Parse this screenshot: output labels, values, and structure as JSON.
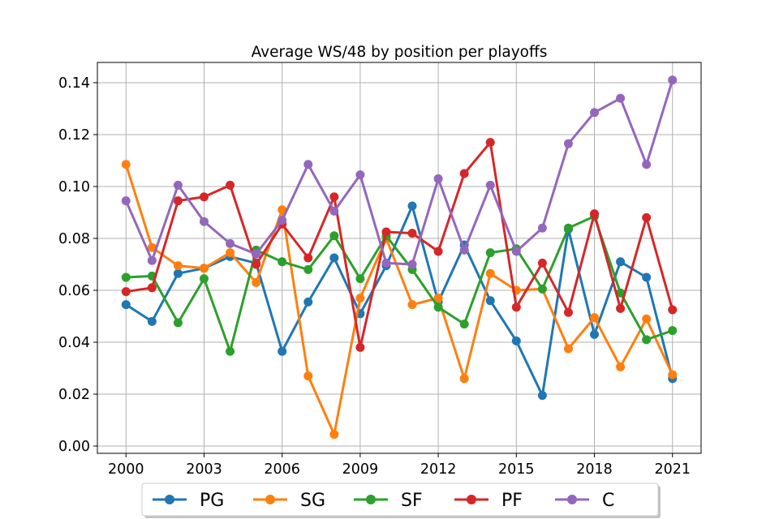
{
  "chart_data": {
    "type": "line",
    "title": "Average WS/48 by position per playoffs",
    "xlabel": "",
    "ylabel": "",
    "x": [
      2000,
      2001,
      2002,
      2003,
      2004,
      2005,
      2006,
      2007,
      2008,
      2009,
      2010,
      2011,
      2012,
      2013,
      2014,
      2015,
      2016,
      2017,
      2018,
      2019,
      2020,
      2021
    ],
    "xlim": [
      1998.9,
      2022.1
    ],
    "ylim": [
      -0.0028,
      0.1478
    ],
    "xticks": [
      2000,
      2003,
      2006,
      2009,
      2012,
      2015,
      2018,
      2021
    ],
    "yticks": [
      0.0,
      0.02,
      0.04,
      0.06,
      0.08,
      0.1,
      0.12,
      0.14
    ],
    "ytick_labels": [
      "0.00",
      "0.02",
      "0.04",
      "0.06",
      "0.08",
      "0.10",
      "0.12",
      "0.14"
    ],
    "grid": true,
    "legend_position": "bottom-center",
    "series": [
      {
        "name": "PG",
        "color": "#1f77b4",
        "values": [
          0.0545,
          0.048,
          0.0665,
          0.0685,
          0.073,
          0.0705,
          0.0365,
          0.0555,
          0.0725,
          0.051,
          0.0695,
          0.0925,
          0.0555,
          0.0775,
          0.056,
          0.0405,
          0.0195,
          0.0835,
          0.043,
          0.071,
          0.065,
          0.026
        ]
      },
      {
        "name": "SG",
        "color": "#ff7f0e",
        "values": [
          0.1085,
          0.0765,
          0.0695,
          0.0685,
          0.0745,
          0.063,
          0.091,
          0.027,
          0.0045,
          0.057,
          0.08,
          0.0545,
          0.057,
          0.026,
          0.0665,
          0.06,
          0.0605,
          0.0375,
          0.0495,
          0.0305,
          0.049,
          0.0275
        ]
      },
      {
        "name": "SF",
        "color": "#2ca02c",
        "values": [
          0.065,
          0.0655,
          0.0475,
          0.0645,
          0.0365,
          0.0755,
          0.071,
          0.068,
          0.081,
          0.0645,
          0.081,
          0.068,
          0.0535,
          0.047,
          0.0745,
          0.076,
          0.0605,
          0.084,
          0.0885,
          0.059,
          0.041,
          0.0445
        ]
      },
      {
        "name": "PF",
        "color": "#d62728",
        "values": [
          0.0595,
          0.061,
          0.0945,
          0.096,
          0.1005,
          0.07,
          0.0855,
          0.0725,
          0.096,
          0.038,
          0.0825,
          0.082,
          0.075,
          0.105,
          0.117,
          0.0535,
          0.0705,
          0.0515,
          0.0895,
          0.053,
          0.088,
          0.0525
        ]
      },
      {
        "name": "C",
        "color": "#9467bd",
        "values": [
          0.0945,
          0.0715,
          0.1005,
          0.0865,
          0.078,
          0.074,
          0.087,
          0.1085,
          0.0905,
          0.1045,
          0.0705,
          0.07,
          0.103,
          0.0755,
          0.1005,
          0.075,
          0.084,
          0.1165,
          0.1285,
          0.134,
          0.1085,
          0.141
        ]
      }
    ]
  }
}
